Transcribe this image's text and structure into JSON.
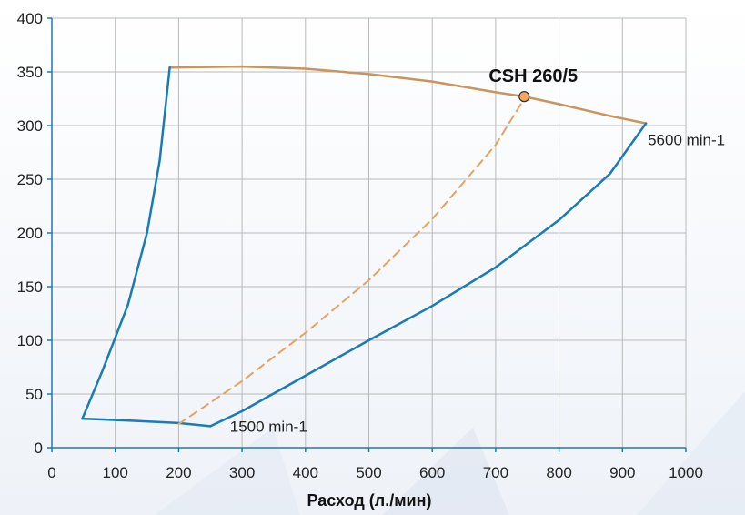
{
  "chart_data": {
    "type": "line",
    "xlabel": "Расход (л./мин)",
    "ylabel": "",
    "xlim": [
      0,
      1000
    ],
    "ylim": [
      0,
      400
    ],
    "x_ticks": [
      "0",
      "100",
      "200",
      "300",
      "400",
      "500",
      "600",
      "700",
      "800",
      "900",
      "1000"
    ],
    "y_ticks": [
      "0",
      "50",
      "100",
      "150",
      "200",
      "250",
      "300",
      "350",
      "400"
    ],
    "grid": true,
    "series": [
      {
        "name": "5600 min-1",
        "style": "solid",
        "color": "#c8955f",
        "points": [
          [
            186,
            354
          ],
          [
            300,
            355
          ],
          [
            400,
            353
          ],
          [
            500,
            348
          ],
          [
            600,
            341
          ],
          [
            700,
            331
          ],
          [
            745,
            327
          ],
          [
            800,
            320
          ],
          [
            880,
            309
          ],
          [
            937,
            302
          ]
        ]
      },
      {
        "name": "1500 min-1",
        "style": "solid",
        "color": "#1a7bb5",
        "points": [
          [
            48,
            27
          ],
          [
            130,
            25
          ],
          [
            200,
            23
          ],
          [
            250,
            20
          ]
        ]
      },
      {
        "name": "",
        "style": "solid",
        "color": "#1a7bb5",
        "points": [
          [
            250,
            20
          ],
          [
            300,
            34
          ],
          [
            400,
            67
          ],
          [
            500,
            100
          ],
          [
            600,
            132
          ],
          [
            700,
            168
          ],
          [
            800,
            212
          ],
          [
            880,
            255
          ],
          [
            937,
            302
          ]
        ]
      },
      {
        "name": "",
        "style": "solid",
        "color": "#1a7bb5",
        "points": [
          [
            48,
            27
          ],
          [
            80,
            72
          ],
          [
            120,
            133
          ],
          [
            150,
            200
          ],
          [
            170,
            267
          ],
          [
            186,
            354
          ]
        ]
      },
      {
        "name": "",
        "style": "dashed",
        "color": "#e3a361",
        "points": [
          [
            200,
            22
          ],
          [
            300,
            62
          ],
          [
            400,
            107
          ],
          [
            500,
            156
          ],
          [
            600,
            213
          ],
          [
            700,
            282
          ],
          [
            745,
            325
          ]
        ]
      }
    ],
    "marker": {
      "label": "CSH 260/5",
      "x": 745,
      "y": 327,
      "color": "#f2a860"
    },
    "annotations": [
      {
        "text": "5600 min-1",
        "x": 937,
        "y": 302
      },
      {
        "text": "1500 min-1",
        "x": 255,
        "y": 20
      }
    ]
  }
}
